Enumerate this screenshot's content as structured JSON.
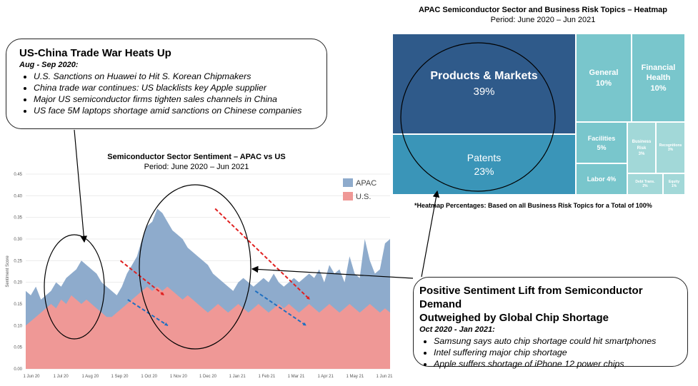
{
  "callout_left": {
    "title": "US-China Trade War Heats Up",
    "period": "Aug - Sep 2020:",
    "items": [
      "U.S. Sanctions on Huawei to Hit S. Korean Chipmakers",
      "China trade war continues: US blacklists key Apple supplier",
      "Major US semiconductor firms tighten sales channels in China",
      "US face 5M laptops shortage amid sanctions on Chinese companies"
    ]
  },
  "callout_right": {
    "title_line1": "Positive Sentiment Lift from Semiconductor Demand",
    "title_line2": "Outweighed by Global Chip Shortage",
    "period": "Oct 2020 - Jan 2021:",
    "items": [
      "Samsung says auto chip shortage could hit smartphones",
      "Intel suffering major chip shortage",
      "Apple suffers shortage of iPhone 12 power chips"
    ]
  },
  "heatmap": {
    "title": "APAC Semiconductor Sector and Business Risk Topics – Heatmap",
    "period": "Period: June 2020 – Jun 2021",
    "note": "*Heatmap Percentages: Based on all Business Risk Topics for a Total of 100%",
    "tiles": [
      {
        "label": "Products & Markets",
        "pct": "39%"
      },
      {
        "label": "Patents",
        "pct": "23%"
      },
      {
        "label": "General",
        "pct": "10%"
      },
      {
        "label": "Financial Health",
        "pct": "10%"
      },
      {
        "label": "Facilities",
        "pct": "5%"
      },
      {
        "label": "Labor 4%",
        "pct": ""
      },
      {
        "label": "Business Risk",
        "pct": "3%"
      },
      {
        "label": "Recognitions",
        "pct": "3%"
      },
      {
        "label": "Debt Trans.",
        "pct": "2%"
      },
      {
        "label": "Equity",
        "pct": "1%"
      }
    ],
    "colors": {
      "dark": "#2f5a8a",
      "mid": "#3a95b8",
      "light": "#79c6cc",
      "lighter": "#a2d8d8"
    }
  },
  "chart_data": {
    "type": "area",
    "title": "Semiconductor Sector Sentiment – APAC vs US",
    "subtitle": "Period: June 2020 – Jun 2021",
    "ylabel": "Sentiment Score",
    "ylim": [
      0,
      0.45
    ],
    "yticks": [
      "0.00",
      "0.05",
      "0.10",
      "0.15",
      "0.20",
      "0.25",
      "0.30",
      "0.35",
      "0.40",
      "0.45"
    ],
    "xticks": [
      "1 Jun 20",
      "1 Jul 20",
      "1 Aug 20",
      "1 Sep 20",
      "1 Oct 20",
      "1 Nov 20",
      "1 Dec 20",
      "1 Jan 21",
      "1 Feb 21",
      "1 Mar 21",
      "1 Apr 21",
      "1 May 21",
      "1 Jun 21"
    ],
    "legend": [
      "APAC",
      "U.S."
    ],
    "colors": {
      "apac": "#8eabcc",
      "us": "#ef9896"
    },
    "series": [
      {
        "name": "APAC",
        "values": [
          0.18,
          0.17,
          0.19,
          0.16,
          0.17,
          0.18,
          0.2,
          0.19,
          0.21,
          0.22,
          0.23,
          0.25,
          0.24,
          0.23,
          0.22,
          0.2,
          0.19,
          0.18,
          0.17,
          0.19,
          0.22,
          0.24,
          0.26,
          0.3,
          0.33,
          0.34,
          0.37,
          0.36,
          0.34,
          0.32,
          0.31,
          0.3,
          0.28,
          0.27,
          0.26,
          0.25,
          0.24,
          0.22,
          0.21,
          0.2,
          0.19,
          0.18,
          0.2,
          0.21,
          0.2,
          0.19,
          0.2,
          0.21,
          0.2,
          0.22,
          0.2,
          0.19,
          0.2,
          0.21,
          0.2,
          0.21,
          0.22,
          0.21,
          0.23,
          0.2,
          0.24,
          0.22,
          0.23,
          0.2,
          0.26,
          0.22,
          0.21,
          0.3,
          0.25,
          0.22,
          0.23,
          0.29,
          0.3
        ]
      },
      {
        "name": "U.S.",
        "values": [
          0.1,
          0.11,
          0.12,
          0.13,
          0.14,
          0.15,
          0.14,
          0.16,
          0.15,
          0.17,
          0.16,
          0.15,
          0.16,
          0.15,
          0.14,
          0.13,
          0.12,
          0.12,
          0.13,
          0.14,
          0.15,
          0.16,
          0.17,
          0.18,
          0.19,
          0.18,
          0.19,
          0.18,
          0.19,
          0.18,
          0.17,
          0.16,
          0.17,
          0.16,
          0.15,
          0.14,
          0.13,
          0.14,
          0.15,
          0.14,
          0.13,
          0.14,
          0.15,
          0.14,
          0.13,
          0.14,
          0.15,
          0.14,
          0.13,
          0.14,
          0.15,
          0.14,
          0.15,
          0.14,
          0.13,
          0.14,
          0.15,
          0.14,
          0.13,
          0.14,
          0.15,
          0.14,
          0.13,
          0.14,
          0.15,
          0.14,
          0.13,
          0.14,
          0.15,
          0.14,
          0.13,
          0.14,
          0.13
        ]
      }
    ],
    "trendlines": [
      {
        "series": "APAC",
        "from": [
          0.26,
          0.25
        ],
        "to": [
          0.38,
          0.17
        ]
      },
      {
        "series": "U.S.",
        "from": [
          0.28,
          0.16
        ],
        "to": [
          0.39,
          0.1
        ]
      },
      {
        "series": "APAC",
        "from": [
          0.52,
          0.37
        ],
        "to": [
          0.78,
          0.16
        ]
      },
      {
        "series": "U.S.",
        "from": [
          0.63,
          0.18
        ],
        "to": [
          0.77,
          0.1
        ]
      }
    ]
  }
}
